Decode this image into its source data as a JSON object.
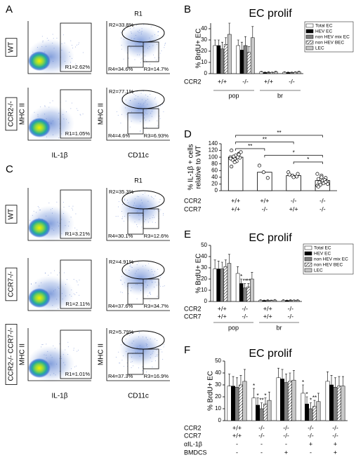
{
  "panel_labels": [
    "A",
    "B",
    "C",
    "D",
    "E",
    "F"
  ],
  "flow_a": {
    "gate_title": "R1",
    "y_label": "MHC II",
    "x_labels": [
      "IL-1β",
      "CD11c"
    ],
    "rows": [
      {
        "label": "WT",
        "gates": [
          "R1=2.62%",
          "R2=33.8%",
          "R3=14.7%",
          "R4=34.6%"
        ]
      },
      {
        "label": "CCR2-/-",
        "gates": [
          "R1=1.05%",
          "R2=77.1%",
          "R3=6.93%",
          "R4=4.6%"
        ]
      }
    ]
  },
  "flow_c": {
    "gate_title": "R1",
    "y_label": "MHC II",
    "x_labels": [
      "IL-1β",
      "CD11c"
    ],
    "rows": [
      {
        "label": "WT",
        "gates": [
          "R1=3.21%",
          "R2=35.3%",
          "R3=12.6%",
          "R4=30.1%"
        ]
      },
      {
        "label": "CCR7-/-",
        "gates": [
          "R1=2.11%",
          "R2=4.91%",
          "R3=34.7%",
          "R4=37.6%"
        ]
      },
      {
        "label": "CCR2-/- CCR7-/-",
        "gates": [
          "R1=1.01%",
          "R2=5.79%",
          "R3=16.9%",
          "R4=37.3%"
        ]
      }
    ]
  },
  "chart_data": [
    {
      "type": "bar",
      "title": "EC prolif",
      "ylabel": "% BrdU+ EC",
      "ylim": [
        0,
        45
      ],
      "yticks": [
        0,
        10,
        20,
        30,
        40
      ],
      "legend": "upper right",
      "category_rows": [
        {
          "label": "CCR2",
          "values": [
            "+/+",
            "-/-",
            "+/+",
            "-/-"
          ]
        }
      ],
      "groups": [
        "pop",
        "br"
      ],
      "series": [
        {
          "name": "Total EC",
          "color": "#ffffff",
          "values": [
            25,
            25,
            1.5,
            1.2
          ],
          "errors": [
            5,
            5,
            0.5,
            0.5
          ]
        },
        {
          "name": "HEV EC",
          "color": "#000000",
          "values": [
            25,
            21,
            1,
            1
          ],
          "errors": [
            5,
            7,
            0.4,
            0.4
          ]
        },
        {
          "name": "non HEV mix EC",
          "color": "#808080",
          "values": [
            22,
            25,
            1.2,
            1
          ],
          "errors": [
            6,
            8,
            0.5,
            0.4
          ]
        },
        {
          "name": "non HEV BEC",
          "color": "#ffffff",
          "hatch": true,
          "values": [
            26,
            19,
            1,
            1.2
          ],
          "errors": [
            6,
            5,
            0.4,
            0.5
          ]
        },
        {
          "name": "LEC",
          "color": "#c8c8c8",
          "values": [
            35,
            32,
            1.5,
            1.5
          ],
          "errors": [
            10,
            10,
            0.6,
            0.6
          ]
        }
      ]
    },
    {
      "type": "dot",
      "ylabel": [
        "% IL-1β + cells",
        "relative to WT"
      ],
      "ylim": [
        0,
        140
      ],
      "yticks": [
        0,
        20,
        40,
        60,
        80,
        100,
        120,
        140
      ],
      "category_rows": [
        {
          "label": "CCR2",
          "values": [
            "+/+",
            "+/+",
            "-/-",
            "-/-"
          ]
        },
        {
          "label": "CCR7",
          "values": [
            "+/+",
            "-/-",
            "+/+",
            "-/-"
          ]
        }
      ],
      "values": [
        100,
        55,
        45,
        30
      ],
      "points": [
        [
          100,
          95,
          110,
          120,
          105,
          98,
          92,
          88,
          115,
          102,
          100,
          96,
          85,
          108,
          72
        ],
        [
          75,
          55,
          38
        ],
        [
          55,
          45,
          42,
          48,
          40,
          50
        ],
        [
          50,
          45,
          38,
          35,
          30,
          28,
          25,
          22,
          20,
          18,
          32,
          15,
          40,
          26,
          12
        ]
      ],
      "comparisons": [
        {
          "pair": [
            0,
            3
          ],
          "label": "**"
        },
        {
          "pair": [
            0,
            2
          ],
          "label": "**"
        },
        {
          "pair": [
            0,
            1
          ],
          "label": "**"
        },
        {
          "pair": [
            1,
            3
          ],
          "label": "*"
        },
        {
          "pair": [
            2,
            3
          ],
          "label": "*"
        }
      ]
    },
    {
      "type": "bar",
      "title": "EC prolif",
      "ylabel": "% BrdU+ EC",
      "ylim": [
        0,
        50
      ],
      "yticks": [
        0,
        10,
        20,
        30,
        40,
        50
      ],
      "legend": "upper right",
      "category_rows": [
        {
          "label": "CCR2",
          "values": [
            "+/+",
            "-/-",
            "+/+",
            "-/-"
          ]
        },
        {
          "label": "CCR7",
          "values": [
            "+/+",
            "-/-",
            "+/+",
            "-/-"
          ]
        }
      ],
      "groups": [
        "pop",
        "br"
      ],
      "series": [
        {
          "name": "Total EC",
          "color": "#ffffff",
          "values": [
            29,
            25,
            1,
            1
          ],
          "errors": [
            8,
            6,
            0.5,
            0.5
          ]
        },
        {
          "name": "HEV EC",
          "color": "#000000",
          "values": [
            29,
            16,
            0.8,
            0.8
          ],
          "errors": [
            7,
            4,
            0.4,
            0.4
          ],
          "sig": [
            null,
            "*",
            null,
            null
          ]
        },
        {
          "name": "non HEV mix EC",
          "color": "#808080",
          "values": [
            29,
            12,
            1,
            1
          ],
          "errors": [
            6,
            4,
            0.5,
            0.5
          ],
          "sig": [
            null,
            "**",
            null,
            null
          ]
        },
        {
          "name": "non HEV BEC",
          "color": "#ffffff",
          "hatch": true,
          "values": [
            31,
            13,
            0.8,
            1
          ],
          "errors": [
            6,
            3,
            0.4,
            0.4
          ],
          "sig": [
            null,
            "**",
            null,
            null
          ]
        },
        {
          "name": "LEC",
          "color": "#c8c8c8",
          "values": [
            34,
            20,
            1.2,
            1
          ],
          "errors": [
            8,
            6,
            0.6,
            0.5
          ]
        }
      ]
    },
    {
      "type": "bar",
      "title": "EC prolif",
      "ylabel": "% BrdU+ EC",
      "ylim": [
        0,
        50
      ],
      "yticks": [
        0,
        10,
        20,
        30,
        40,
        50
      ],
      "category_rows": [
        {
          "label": "CCR2",
          "values": [
            "+/+",
            "-/-",
            "-/-",
            "-/-",
            "-/-"
          ]
        },
        {
          "label": "CCR7",
          "values": [
            "+/+",
            "-/-",
            "-/-",
            "-/-",
            "-/-"
          ]
        },
        {
          "label": "αIL-1β",
          "values": [
            "-",
            "-",
            "-",
            "+",
            "+"
          ]
        },
        {
          "label": "BMDCS",
          "values": [
            "-",
            "-",
            "+",
            "-",
            "+"
          ]
        }
      ],
      "series": [
        {
          "color": "#ffffff",
          "values": [
            29,
            19,
            36,
            23,
            33
          ],
          "errors": [
            10,
            8,
            8,
            7,
            8
          ],
          "sig": [
            null,
            "*",
            null,
            "*",
            null
          ]
        },
        {
          "color": "#000000",
          "values": [
            29,
            13,
            35,
            14,
            30
          ],
          "errors": [
            8,
            6,
            8,
            6,
            8
          ],
          "sig": [
            null,
            "*",
            null,
            "*",
            null
          ]
        },
        {
          "color": "#808080",
          "values": [
            28,
            10,
            32,
            10,
            28
          ],
          "errors": [
            8,
            5,
            7,
            5,
            8
          ],
          "sig": [
            null,
            "**",
            null,
            "*",
            null
          ]
        },
        {
          "color": "#ffffff",
          "hatch": true,
          "values": [
            30,
            14,
            33,
            12,
            29
          ],
          "errors": [
            8,
            5,
            7,
            5,
            8
          ],
          "sig": [
            null,
            "*",
            null,
            "**",
            null
          ]
        },
        {
          "color": "#c8c8c8",
          "values": [
            33,
            17,
            34,
            16,
            29
          ],
          "errors": [
            10,
            7,
            8,
            7,
            8
          ]
        }
      ]
    }
  ]
}
